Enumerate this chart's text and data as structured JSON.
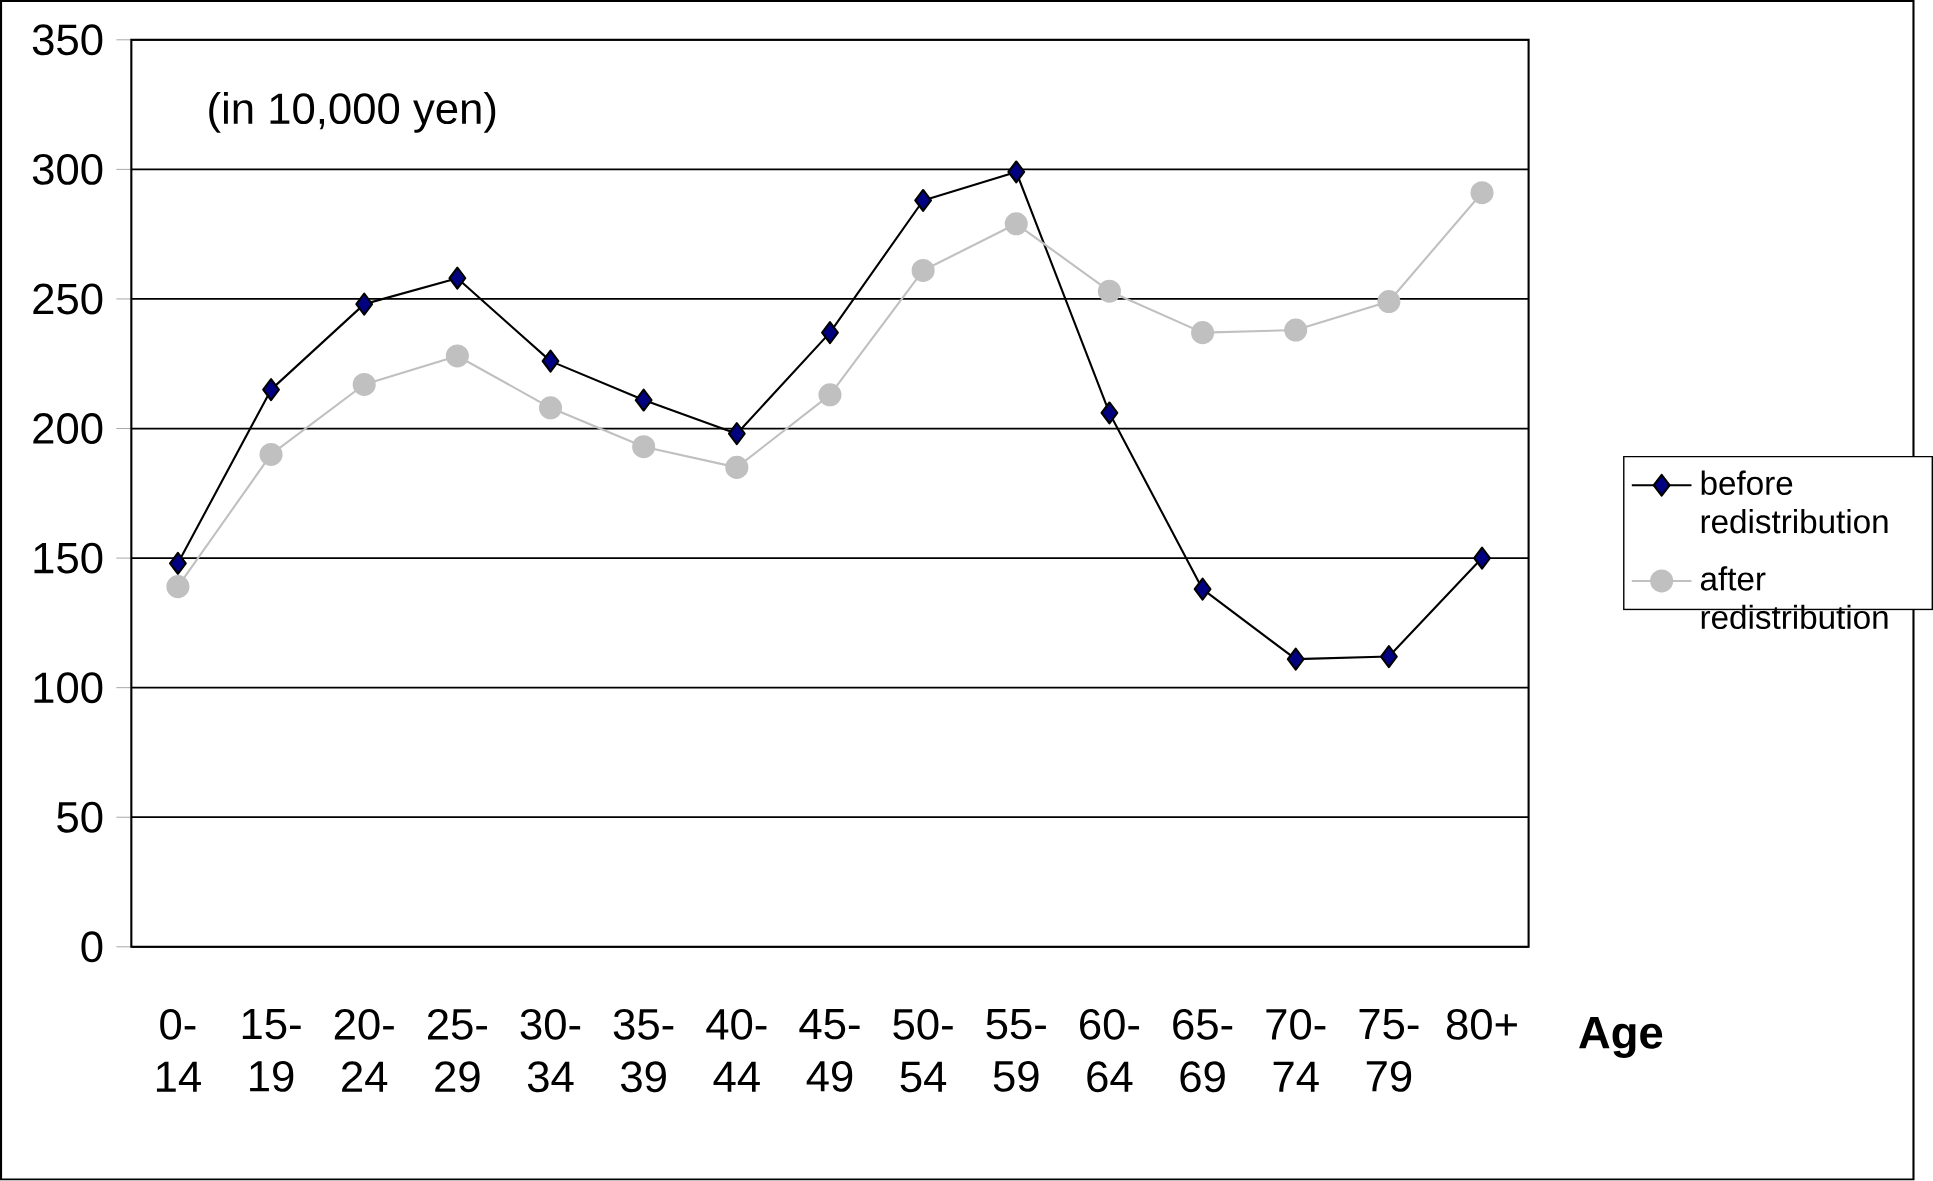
{
  "chart_data": {
    "type": "line",
    "xlabel": "Age",
    "annotations": [
      "(in 10,000 yen)"
    ],
    "categories": [
      "0-14",
      "15-19",
      "20-24",
      "25-29",
      "30-34",
      "35-39",
      "40-44",
      "45-49",
      "50-54",
      "55-59",
      "60-64",
      "65-69",
      "70-74",
      "75-79",
      "80+"
    ],
    "series": [
      {
        "name": "before redistribution",
        "color": "#000080",
        "marker": "diamond",
        "values": [
          148,
          215,
          248,
          258,
          226,
          211,
          198,
          237,
          288,
          299,
          206,
          138,
          111,
          112,
          150
        ]
      },
      {
        "name": "after redistribution",
        "color": "#c0c0c0",
        "marker": "circle",
        "values": [
          139,
          190,
          217,
          228,
          208,
          193,
          185,
          213,
          261,
          279,
          253,
          237,
          238,
          249,
          291
        ]
      }
    ],
    "ylim": [
      0,
      350
    ],
    "yticks": [
      0,
      50,
      100,
      150,
      200,
      250,
      300,
      350
    ],
    "grid": "y",
    "legend": "right"
  }
}
